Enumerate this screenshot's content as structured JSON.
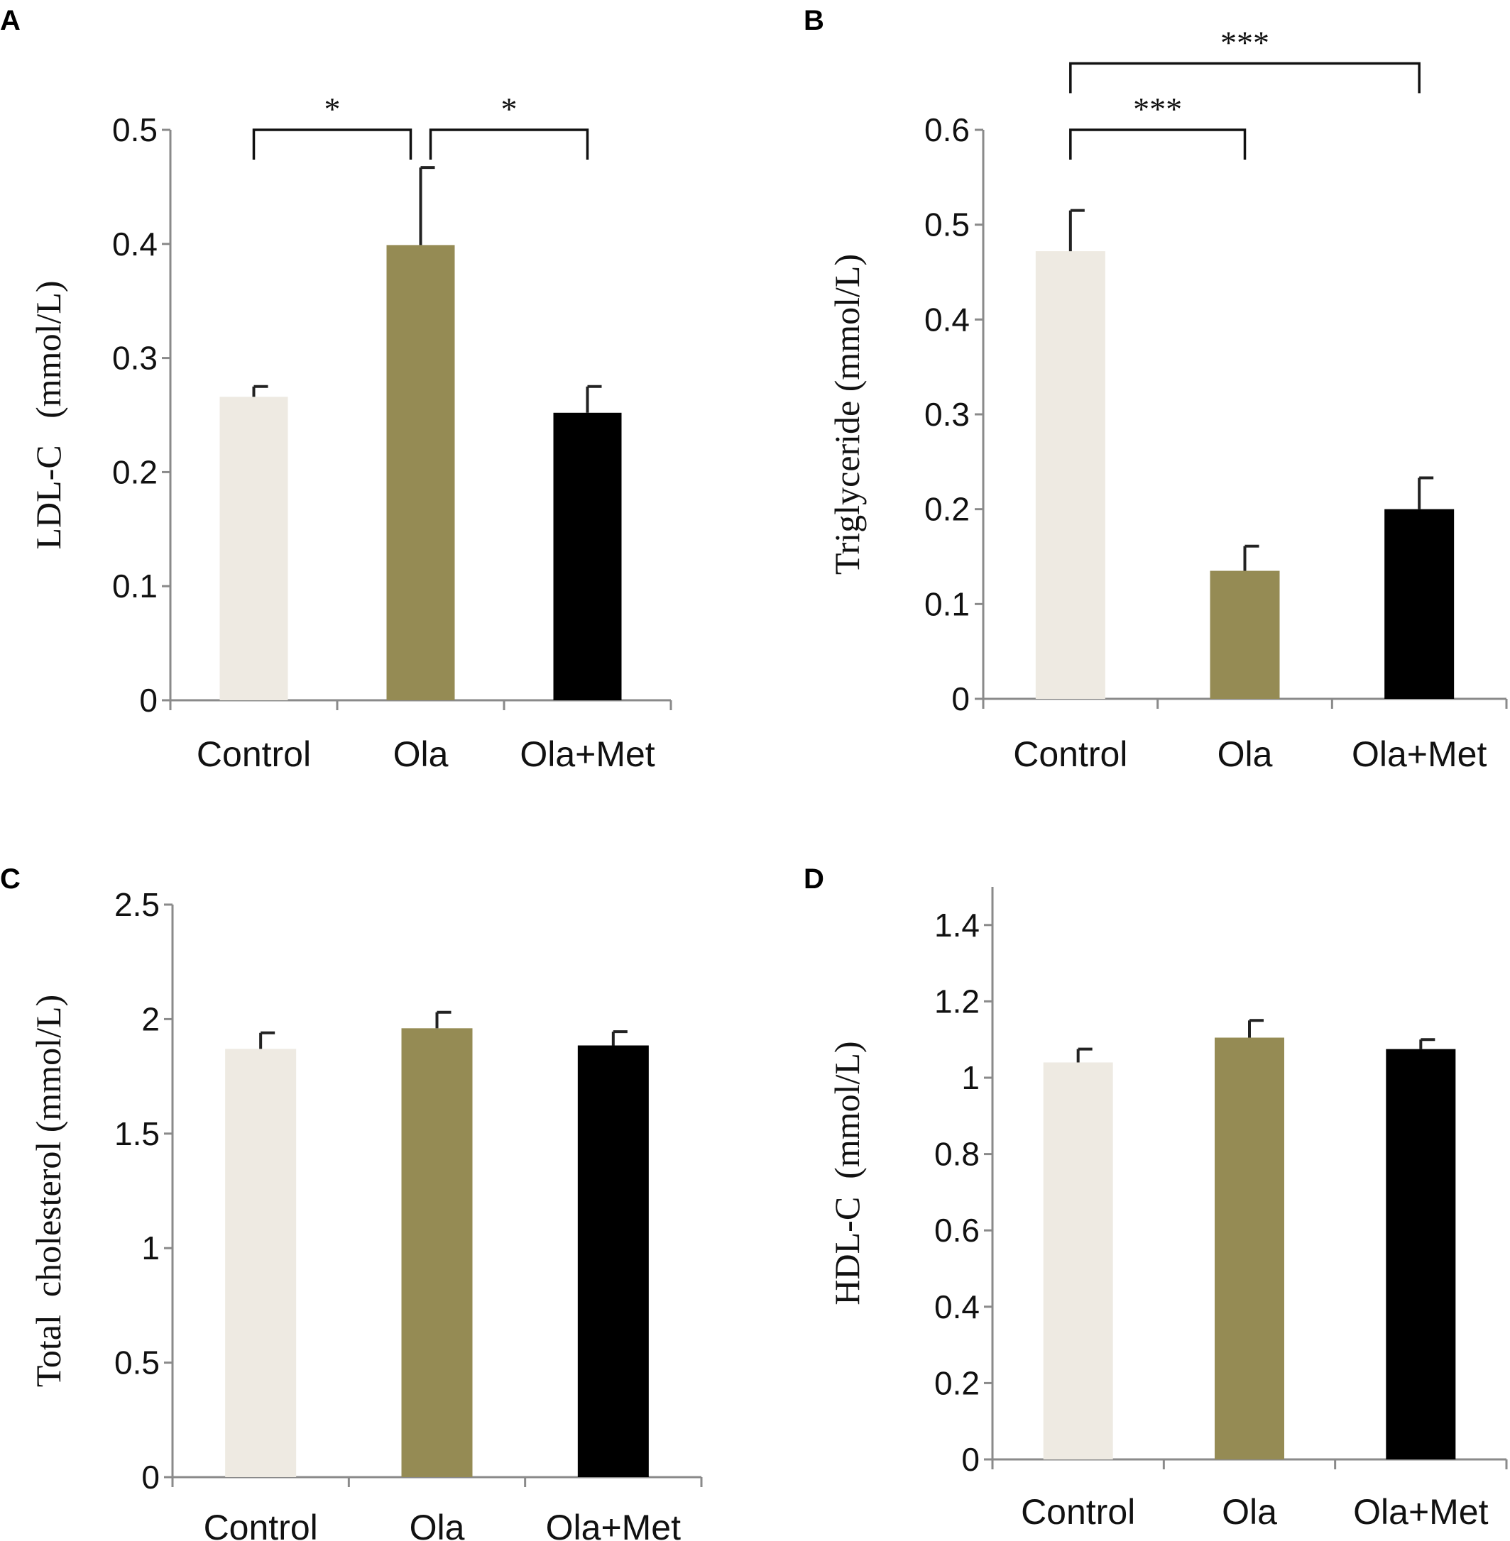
{
  "chart_data": [
    {
      "panel": "A",
      "type": "bar",
      "ylabel": "LDL-C   (mmol/L)",
      "categories": [
        "Control",
        "Ola",
        "Ola+Met"
      ],
      "values": [
        0.266,
        0.399,
        0.252
      ],
      "errors": [
        0.009,
        0.068,
        0.023
      ],
      "ylim": [
        0,
        0.5
      ],
      "yticks": [
        0,
        0.1,
        0.2,
        0.3,
        0.4,
        0.5
      ],
      "ytick_labels": [
        "0",
        "0.1",
        "0.2",
        "0.3",
        "0.4",
        "0.5"
      ],
      "colors": [
        "#eeeae2",
        "#958b54",
        "#000000"
      ],
      "significance": [
        {
          "from": 0,
          "to": 1,
          "label": "*",
          "level": 0.5
        },
        {
          "from": 1,
          "to": 2,
          "label": "*",
          "level": 0.5
        }
      ]
    },
    {
      "panel": "B",
      "type": "bar",
      "ylabel": "Triglyceride (mmol/L)",
      "categories": [
        "Control",
        "Ola",
        "Ola+Met"
      ],
      "values": [
        0.472,
        0.135,
        0.2
      ],
      "errors": [
        0.043,
        0.026,
        0.033
      ],
      "ylim": [
        0,
        0.6
      ],
      "yticks": [
        0,
        0.1,
        0.2,
        0.3,
        0.4,
        0.5,
        0.6
      ],
      "ytick_labels": [
        "0",
        "0.1",
        "0.2",
        "0.3",
        "0.4",
        "0.5",
        "0.6"
      ],
      "colors": [
        "#eeeae2",
        "#958b54",
        "#000000"
      ],
      "significance": [
        {
          "from": 0,
          "to": 1,
          "label": "***",
          "level": 0.6
        },
        {
          "from": 0,
          "to": 2,
          "label": "***",
          "level": 0.67
        }
      ]
    },
    {
      "panel": "C",
      "type": "bar",
      "ylabel": "Total  cholesterol (mmol/L)",
      "categories": [
        "Control",
        "Ola",
        "Ola+Met"
      ],
      "values": [
        1.87,
        1.96,
        1.885
      ],
      "errors": [
        0.07,
        0.07,
        0.06
      ],
      "ylim": [
        0,
        2.5
      ],
      "yticks": [
        0,
        0.5,
        1,
        1.5,
        2,
        2.5
      ],
      "ytick_labels": [
        "0",
        "0.5",
        "1",
        "1.5",
        "2",
        "2.5"
      ],
      "colors": [
        "#eeeae2",
        "#958b54",
        "#000000"
      ],
      "significance": []
    },
    {
      "panel": "D",
      "type": "bar",
      "ylabel": "HDL-C  (mmol/L)",
      "categories": [
        "Control",
        "Ola",
        "Ola+Met"
      ],
      "values": [
        1.04,
        1.105,
        1.075
      ],
      "errors": [
        0.035,
        0.045,
        0.025
      ],
      "ylim": [
        0,
        1.5
      ],
      "yticks": [
        0,
        0.2,
        0.4,
        0.6,
        0.8,
        1,
        1.2,
        1.4
      ],
      "ytick_labels": [
        "0",
        "0.2",
        "0.4",
        "0.6",
        "0.8",
        "1",
        "1.2",
        "1.4"
      ],
      "colors": [
        "#eeeae2",
        "#958b54",
        "#000000"
      ],
      "significance": []
    }
  ]
}
